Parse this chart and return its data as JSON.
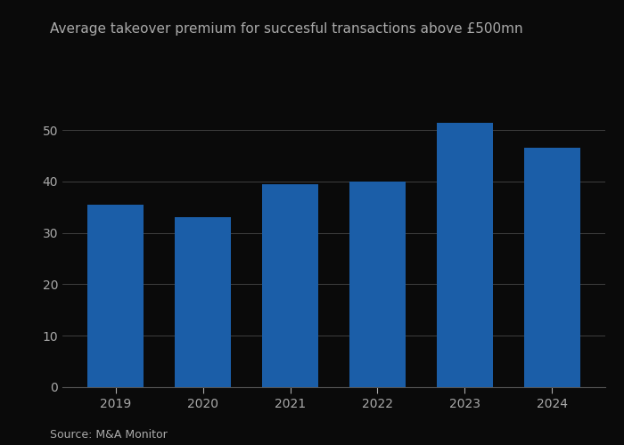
{
  "title": "Average takeover premium for succesful transactions above £500mn",
  "source": "Source: M&A Monitor",
  "categories": [
    "2019",
    "2020",
    "2021",
    "2022",
    "2023",
    "2024"
  ],
  "values": [
    35.5,
    33.0,
    39.5,
    40.0,
    51.5,
    46.5
  ],
  "bar_color": "#1b5ea8",
  "background_color": "#0a0a0a",
  "text_color": "#aaaaaa",
  "grid_color": "#ffffff",
  "axis_color": "#555555",
  "ylim": [
    0,
    58
  ],
  "yticks": [
    0,
    10,
    20,
    30,
    40,
    50
  ],
  "title_fontsize": 11,
  "source_fontsize": 9,
  "tick_fontsize": 10,
  "bar_width": 0.65
}
